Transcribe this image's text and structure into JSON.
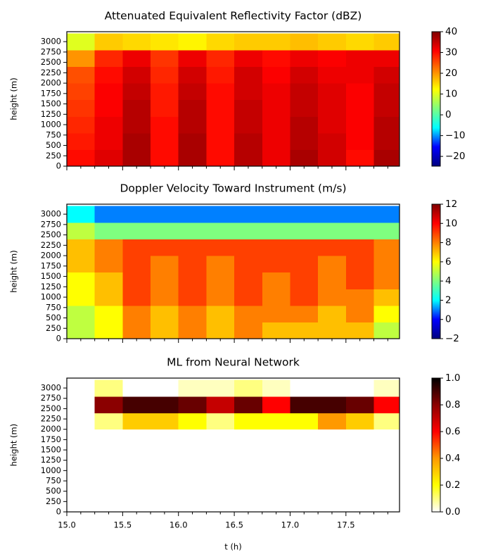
{
  "chart_data": [
    {
      "type": "heatmap",
      "title": "Attenuated Equivalent Reflectivity Factor (dBZ)",
      "ylabel": "height (m)",
      "xlim": [
        15.0,
        17.98
      ],
      "xticks": [
        15.0,
        15.5,
        16.0,
        16.5,
        17.0,
        17.5
      ],
      "xtick_labels": false,
      "ylim": [
        0,
        3240
      ],
      "yticks": [
        0,
        250,
        500,
        750,
        1000,
        1250,
        1500,
        1750,
        2000,
        2250,
        2500,
        2750,
        3000
      ],
      "x_edges": [
        15.0,
        15.25,
        15.5,
        15.75,
        16.0,
        16.25,
        16.5,
        16.75,
        17.0,
        17.25,
        17.5,
        17.75,
        18.0
      ],
      "y_edges": [
        0,
        400,
        800,
        1200,
        1600,
        2000,
        2400,
        2800,
        3200
      ],
      "z": [
        [
          30,
          33,
          37,
          30,
          37,
          30,
          36,
          32,
          37,
          34,
          30,
          37
        ],
        [
          29,
          32,
          37,
          30,
          37,
          30,
          36,
          32,
          36,
          34,
          31,
          36
        ],
        [
          28,
          32,
          36,
          30,
          36,
          30,
          35,
          32,
          36,
          33,
          31,
          36
        ],
        [
          27,
          31,
          36,
          29,
          36,
          30,
          35,
          32,
          35,
          33,
          31,
          35
        ],
        [
          26,
          31,
          35,
          29,
          35,
          30,
          34,
          32,
          35,
          33,
          31,
          35
        ],
        [
          25,
          30,
          34,
          28,
          34,
          29,
          34,
          31,
          34,
          32,
          32,
          34
        ],
        [
          20,
          28,
          32,
          27,
          32,
          28,
          32,
          30,
          32,
          31,
          32,
          32
        ],
        [
          10,
          16,
          15,
          14,
          13,
          15,
          16,
          16,
          17,
          16,
          15,
          16
        ]
      ],
      "colormap": [
        "#00007f",
        "#0000ff",
        "#00ffff",
        "#7fff7f",
        "#ffff00",
        "#ff7f00",
        "#ff0000",
        "#7f0000"
      ],
      "clim": [
        -24.7,
        40
      ],
      "cticks": [
        {
          "value": -20,
          "label": "−20"
        },
        {
          "value": -10,
          "label": "−10"
        },
        0,
        10,
        20,
        30,
        40
      ]
    },
    {
      "type": "heatmap",
      "title": "Doppler Velocity Toward Instrument (m/s)",
      "ylabel": "height (m)",
      "xlim": [
        15.0,
        17.98
      ],
      "xticks": [
        15.0,
        15.5,
        16.0,
        16.5,
        17.0,
        17.5
      ],
      "xtick_labels": false,
      "ylim": [
        0,
        3240
      ],
      "yticks": [
        0,
        250,
        500,
        750,
        1000,
        1250,
        1500,
        1750,
        2000,
        2250,
        2500,
        2750,
        3000
      ],
      "x_edges": [
        15.0,
        15.25,
        15.5,
        15.75,
        16.0,
        16.25,
        16.5,
        16.75,
        17.0,
        17.25,
        17.5,
        17.75,
        18.0
      ],
      "y_edges": [
        0,
        400,
        800,
        1200,
        1600,
        2000,
        2400,
        2800,
        3200
      ],
      "z": [
        [
          5,
          6,
          8,
          7,
          8,
          7,
          8,
          7,
          7,
          7,
          7,
          5
        ],
        [
          5,
          6,
          8,
          7,
          8,
          7,
          8,
          8,
          8,
          7,
          8,
          6
        ],
        [
          6,
          7,
          9,
          8,
          9,
          8,
          9,
          8,
          9,
          8,
          8,
          7
        ],
        [
          6,
          7,
          9,
          8,
          9,
          8,
          9,
          8,
          9,
          8,
          9,
          8
        ],
        [
          7,
          8,
          9,
          8,
          9,
          8,
          9,
          9,
          9,
          8,
          9,
          8
        ],
        [
          7,
          8,
          9,
          9,
          9,
          9,
          9,
          9,
          9,
          9,
          9,
          8
        ],
        [
          5,
          4,
          4,
          4,
          4,
          4,
          4,
          4,
          4,
          4,
          4,
          4
        ],
        [
          2,
          1,
          1,
          1,
          1,
          1,
          1,
          1,
          1,
          1,
          1,
          1
        ]
      ],
      "colormap": [
        "#00007f",
        "#0000ff",
        "#00ffff",
        "#7fff7f",
        "#ffff00",
        "#ff7f00",
        "#ff0000",
        "#7f0000"
      ],
      "clim": [
        -2,
        12
      ],
      "cticks": [
        {
          "value": -2,
          "label": "−2"
        },
        0,
        2,
        4,
        6,
        8,
        10,
        12
      ]
    },
    {
      "type": "heatmap",
      "title": "ML from Neural Network",
      "ylabel": "height (m)",
      "xlabel": "t (h)",
      "xlim": [
        15.0,
        17.98
      ],
      "xticks": [
        {
          "value": 15.0,
          "label": "15.0"
        },
        {
          "value": 15.5,
          "label": "15.5"
        },
        {
          "value": 16.0,
          "label": "16.0"
        },
        {
          "value": 16.5,
          "label": "16.5"
        },
        {
          "value": 17.0,
          "label": "17.0"
        },
        {
          "value": 17.5,
          "label": "17.5"
        }
      ],
      "xtick_labels": true,
      "ylim": [
        0,
        3240
      ],
      "yticks": [
        0,
        250,
        500,
        750,
        1000,
        1250,
        1500,
        1750,
        2000,
        2250,
        2500,
        2750,
        3000
      ],
      "x_edges": [
        15.0,
        15.25,
        15.5,
        15.75,
        16.0,
        16.25,
        16.5,
        16.75,
        17.0,
        17.25,
        17.5,
        17.75,
        18.0
      ],
      "y_edges": [
        0,
        400,
        800,
        1200,
        1600,
        2000,
        2400,
        2800,
        3200
      ],
      "z": [
        [
          null,
          0,
          0,
          0,
          0,
          0,
          0,
          0,
          0,
          0,
          0,
          0
        ],
        [
          null,
          0,
          0,
          0,
          0,
          0,
          0,
          0,
          0,
          0,
          0,
          0
        ],
        [
          null,
          0,
          0,
          0,
          0,
          0,
          0,
          0,
          0,
          0,
          0,
          0
        ],
        [
          null,
          0,
          0,
          0,
          0,
          0,
          0,
          0,
          0,
          0,
          0,
          0
        ],
        [
          null,
          0,
          0,
          0,
          0,
          0,
          0,
          0,
          0,
          0,
          0,
          0
        ],
        [
          null,
          0.1,
          0.3,
          0.3,
          0.2,
          0.1,
          0.2,
          0.2,
          0.2,
          0.4,
          0.3,
          0.1
        ],
        [
          null,
          0.8,
          0.9,
          0.9,
          0.85,
          0.7,
          0.85,
          0.6,
          0.9,
          0.9,
          0.85,
          0.6
        ],
        [
          null,
          0.1,
          0,
          0,
          0.05,
          0.05,
          0.1,
          0.05,
          0,
          0,
          0,
          0.05
        ]
      ],
      "colormap": [
        "#ffffff",
        "#ffff00",
        "#ff9900",
        "#ff0000",
        "#8b0000",
        "#000000"
      ],
      "clim": [
        0,
        1
      ],
      "cticks": [
        {
          "value": 0,
          "label": "0.0"
        },
        {
          "value": 0.2,
          "label": "0.2"
        },
        {
          "value": 0.4,
          "label": "0.4"
        },
        {
          "value": 0.6,
          "label": "0.6"
        },
        {
          "value": 0.8,
          "label": "0.8"
        },
        {
          "value": 1,
          "label": "1.0"
        }
      ]
    }
  ]
}
